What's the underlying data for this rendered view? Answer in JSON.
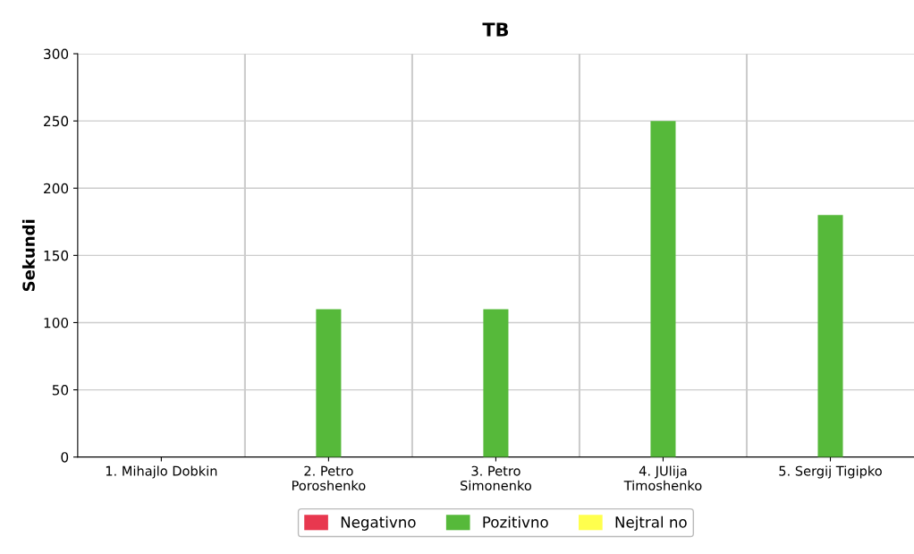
{
  "chart_data": {
    "type": "bar",
    "title": "TB",
    "ylabel": "Sekundi",
    "categories": [
      "1. Mihajlo Dobkin",
      "2. Petro\nPoroshenko",
      "3. Petro\nSimonenko",
      "4. JUlija\nTimoshenko",
      "5. Sergij Tigipko"
    ],
    "series": [
      {
        "name": "Negativno",
        "color": "#e8384f",
        "values": [
          0,
          0,
          0,
          0,
          0
        ]
      },
      {
        "name": "Pozitivno",
        "color": "#56b93a",
        "values": [
          0,
          110,
          110,
          250,
          180
        ]
      },
      {
        "name": "Nejtral no",
        "color": "#ffff4d",
        "values": [
          0,
          0,
          0,
          0,
          0
        ]
      }
    ],
    "ylim": [
      0,
      300
    ],
    "yticks": [
      0,
      50,
      100,
      150,
      200,
      250,
      300
    ],
    "grid": true,
    "legend": "bottom"
  }
}
